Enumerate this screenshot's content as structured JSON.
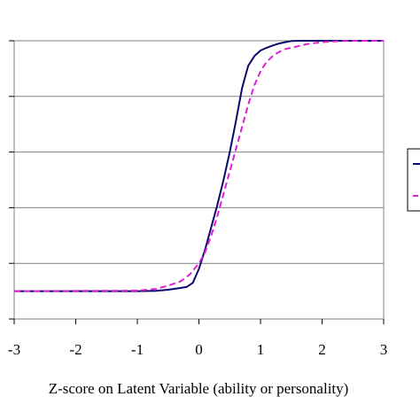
{
  "chart_data": {
    "type": "line",
    "xlabel": "Z-score on Latent Variable (ability or personality)",
    "ylabel": "",
    "xlim": [
      -3,
      3
    ],
    "ylim": [
      0,
      1
    ],
    "x_ticks": [
      "-3",
      "-2",
      "-1",
      "0",
      "1",
      "2",
      "3"
    ],
    "grid": "horizontal",
    "legend_position": "right",
    "series": [
      {
        "color": "#0a0a6e",
        "dash": "solid",
        "points": [
          [
            -3.0,
            0.1
          ],
          [
            -1.0,
            0.1
          ],
          [
            -0.7,
            0.101
          ],
          [
            -0.5,
            0.105
          ],
          [
            -0.35,
            0.11
          ],
          [
            -0.2,
            0.115
          ],
          [
            -0.1,
            0.13
          ],
          [
            0.0,
            0.18
          ],
          [
            0.1,
            0.25
          ],
          [
            0.2,
            0.33
          ],
          [
            0.3,
            0.41
          ],
          [
            0.4,
            0.5
          ],
          [
            0.5,
            0.6
          ],
          [
            0.6,
            0.71
          ],
          [
            0.7,
            0.83
          ],
          [
            0.8,
            0.91
          ],
          [
            0.9,
            0.945
          ],
          [
            1.0,
            0.965
          ],
          [
            1.1,
            0.975
          ],
          [
            1.2,
            0.983
          ],
          [
            1.3,
            0.99
          ],
          [
            1.4,
            0.995
          ],
          [
            1.5,
            0.999
          ],
          [
            1.65,
            1.0
          ],
          [
            3.0,
            1.0
          ]
        ]
      },
      {
        "color": "#e020d0",
        "dash": "dashed",
        "points": [
          [
            -3.0,
            0.1
          ],
          [
            -1.0,
            0.102
          ],
          [
            -0.7,
            0.108
          ],
          [
            -0.5,
            0.12
          ],
          [
            -0.3,
            0.135
          ],
          [
            -0.15,
            0.16
          ],
          [
            0.0,
            0.2
          ],
          [
            0.1,
            0.24
          ],
          [
            0.2,
            0.3
          ],
          [
            0.3,
            0.37
          ],
          [
            0.4,
            0.45
          ],
          [
            0.5,
            0.53
          ],
          [
            0.6,
            0.61
          ],
          [
            0.7,
            0.69
          ],
          [
            0.8,
            0.77
          ],
          [
            0.9,
            0.84
          ],
          [
            1.0,
            0.89
          ],
          [
            1.1,
            0.925
          ],
          [
            1.2,
            0.945
          ],
          [
            1.3,
            0.96
          ],
          [
            1.4,
            0.97
          ],
          [
            1.6,
            0.98
          ],
          [
            1.8,
            0.99
          ],
          [
            2.0,
            0.995
          ],
          [
            2.3,
            0.999
          ],
          [
            2.6,
            1.0
          ],
          [
            3.0,
            1.0
          ]
        ]
      }
    ]
  }
}
